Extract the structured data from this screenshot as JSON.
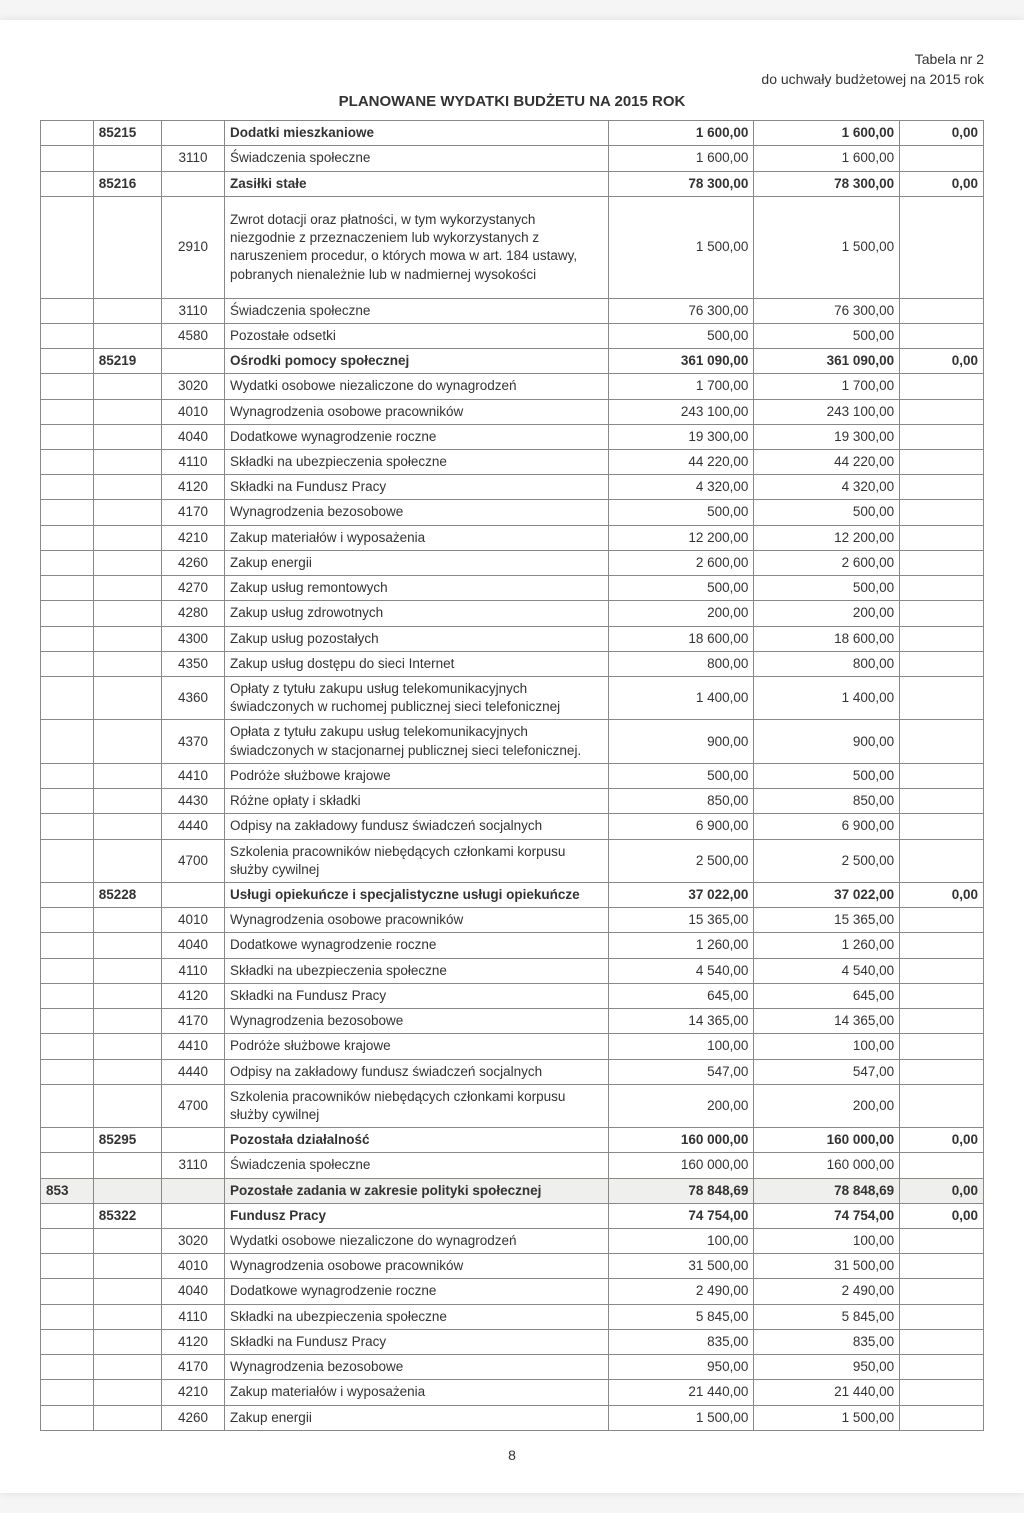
{
  "header": {
    "tableNo": "Tabela nr 2",
    "resolution": "do uchwały budżetowej na 2015 rok",
    "title": "PLANOWANE WYDATKI BUDŻETU NA 2015 ROK"
  },
  "pageNumber": "8",
  "rows": [
    {
      "a": "",
      "b": "85215",
      "c": "",
      "d": "Dodatki mieszkaniowe",
      "e": "1 600,00",
      "f": "1 600,00",
      "g": "0,00",
      "bold": true
    },
    {
      "a": "",
      "b": "",
      "c": "3110",
      "d": "Świadczenia społeczne",
      "e": "1 600,00",
      "f": "1 600,00",
      "g": ""
    },
    {
      "a": "",
      "b": "85216",
      "c": "",
      "d": "Zasiłki stałe",
      "e": "78 300,00",
      "f": "78 300,00",
      "g": "0,00",
      "bold": true
    },
    {
      "a": "",
      "b": "",
      "c": "2910",
      "d": "Zwrot dotacji oraz płatności, w tym wykorzystanych niezgodnie z przeznaczeniem lub wykorzystanych z naruszeniem procedur, o których mowa w art. 184 ustawy, pobranych nienależnie lub w nadmiernej wysokości",
      "e": "1 500,00",
      "f": "1 500,00",
      "g": "",
      "tall": true
    },
    {
      "a": "",
      "b": "",
      "c": "3110",
      "d": "Świadczenia społeczne",
      "e": "76 300,00",
      "f": "76 300,00",
      "g": ""
    },
    {
      "a": "",
      "b": "",
      "c": "4580",
      "d": "Pozostałe odsetki",
      "e": "500,00",
      "f": "500,00",
      "g": ""
    },
    {
      "a": "",
      "b": "85219",
      "c": "",
      "d": "Ośrodki pomocy społecznej",
      "e": "361 090,00",
      "f": "361 090,00",
      "g": "0,00",
      "bold": true
    },
    {
      "a": "",
      "b": "",
      "c": "3020",
      "d": "Wydatki osobowe niezaliczone do wynagrodzeń",
      "e": "1 700,00",
      "f": "1 700,00",
      "g": ""
    },
    {
      "a": "",
      "b": "",
      "c": "4010",
      "d": "Wynagrodzenia osobowe pracowników",
      "e": "243 100,00",
      "f": "243 100,00",
      "g": ""
    },
    {
      "a": "",
      "b": "",
      "c": "4040",
      "d": "Dodatkowe wynagrodzenie roczne",
      "e": "19 300,00",
      "f": "19 300,00",
      "g": ""
    },
    {
      "a": "",
      "b": "",
      "c": "4110",
      "d": "Składki na ubezpieczenia społeczne",
      "e": "44 220,00",
      "f": "44 220,00",
      "g": ""
    },
    {
      "a": "",
      "b": "",
      "c": "4120",
      "d": "Składki na Fundusz Pracy",
      "e": "4 320,00",
      "f": "4 320,00",
      "g": ""
    },
    {
      "a": "",
      "b": "",
      "c": "4170",
      "d": "Wynagrodzenia bezosobowe",
      "e": "500,00",
      "f": "500,00",
      "g": ""
    },
    {
      "a": "",
      "b": "",
      "c": "4210",
      "d": "Zakup materiałów i wyposażenia",
      "e": "12 200,00",
      "f": "12 200,00",
      "g": ""
    },
    {
      "a": "",
      "b": "",
      "c": "4260",
      "d": "Zakup energii",
      "e": "2 600,00",
      "f": "2 600,00",
      "g": ""
    },
    {
      "a": "",
      "b": "",
      "c": "4270",
      "d": "Zakup usług remontowych",
      "e": "500,00",
      "f": "500,00",
      "g": ""
    },
    {
      "a": "",
      "b": "",
      "c": "4280",
      "d": "Zakup usług zdrowotnych",
      "e": "200,00",
      "f": "200,00",
      "g": ""
    },
    {
      "a": "",
      "b": "",
      "c": "4300",
      "d": "Zakup usług pozostałych",
      "e": "18 600,00",
      "f": "18 600,00",
      "g": ""
    },
    {
      "a": "",
      "b": "",
      "c": "4350",
      "d": "Zakup usług dostępu do sieci Internet",
      "e": "800,00",
      "f": "800,00",
      "g": ""
    },
    {
      "a": "",
      "b": "",
      "c": "4360",
      "d": "Opłaty z tytułu zakupu usług telekomunikacyjnych świadczonych w ruchomej publicznej sieci telefonicznej",
      "e": "1 400,00",
      "f": "1 400,00",
      "g": ""
    },
    {
      "a": "",
      "b": "",
      "c": "4370",
      "d": "Opłata z tytułu zakupu usług telekomunikacyjnych świadczonych w stacjonarnej publicznej sieci telefonicznej.",
      "e": "900,00",
      "f": "900,00",
      "g": ""
    },
    {
      "a": "",
      "b": "",
      "c": "4410",
      "d": "Podróże służbowe krajowe",
      "e": "500,00",
      "f": "500,00",
      "g": ""
    },
    {
      "a": "",
      "b": "",
      "c": "4430",
      "d": "Różne opłaty i składki",
      "e": "850,00",
      "f": "850,00",
      "g": ""
    },
    {
      "a": "",
      "b": "",
      "c": "4440",
      "d": "Odpisy na zakładowy fundusz świadczeń socjalnych",
      "e": "6 900,00",
      "f": "6 900,00",
      "g": ""
    },
    {
      "a": "",
      "b": "",
      "c": "4700",
      "d": "Szkolenia pracowników niebędących członkami korpusu służby cywilnej",
      "e": "2 500,00",
      "f": "2 500,00",
      "g": ""
    },
    {
      "a": "",
      "b": "85228",
      "c": "",
      "d": "Usługi opiekuńcze i specjalistyczne usługi opiekuńcze",
      "e": "37 022,00",
      "f": "37 022,00",
      "g": "0,00",
      "bold": true
    },
    {
      "a": "",
      "b": "",
      "c": "4010",
      "d": "Wynagrodzenia osobowe pracowników",
      "e": "15 365,00",
      "f": "15 365,00",
      "g": ""
    },
    {
      "a": "",
      "b": "",
      "c": "4040",
      "d": "Dodatkowe wynagrodzenie roczne",
      "e": "1 260,00",
      "f": "1 260,00",
      "g": ""
    },
    {
      "a": "",
      "b": "",
      "c": "4110",
      "d": "Składki na ubezpieczenia społeczne",
      "e": "4 540,00",
      "f": "4 540,00",
      "g": ""
    },
    {
      "a": "",
      "b": "",
      "c": "4120",
      "d": "Składki na Fundusz Pracy",
      "e": "645,00",
      "f": "645,00",
      "g": ""
    },
    {
      "a": "",
      "b": "",
      "c": "4170",
      "d": "Wynagrodzenia bezosobowe",
      "e": "14 365,00",
      "f": "14 365,00",
      "g": ""
    },
    {
      "a": "",
      "b": "",
      "c": "4410",
      "d": "Podróże służbowe krajowe",
      "e": "100,00",
      "f": "100,00",
      "g": ""
    },
    {
      "a": "",
      "b": "",
      "c": "4440",
      "d": "Odpisy na zakładowy fundusz świadczeń socjalnych",
      "e": "547,00",
      "f": "547,00",
      "g": ""
    },
    {
      "a": "",
      "b": "",
      "c": "4700",
      "d": "Szkolenia pracowników niebędących członkami korpusu służby cywilnej",
      "e": "200,00",
      "f": "200,00",
      "g": ""
    },
    {
      "a": "",
      "b": "85295",
      "c": "",
      "d": "Pozostała działalność",
      "e": "160 000,00",
      "f": "160 000,00",
      "g": "0,00",
      "bold": true
    },
    {
      "a": "",
      "b": "",
      "c": "3110",
      "d": "Świadczenia społeczne",
      "e": "160 000,00",
      "f": "160 000,00",
      "g": ""
    },
    {
      "a": "853",
      "b": "",
      "c": "",
      "d": "Pozostałe zadania w zakresie polityki społecznej",
      "e": "78 848,69",
      "f": "78 848,69",
      "g": "0,00",
      "bold": true,
      "shade": true
    },
    {
      "a": "",
      "b": "85322",
      "c": "",
      "d": "Fundusz Pracy",
      "e": "74 754,00",
      "f": "74 754,00",
      "g": "0,00",
      "bold": true
    },
    {
      "a": "",
      "b": "",
      "c": "3020",
      "d": "Wydatki osobowe niezaliczone do wynagrodzeń",
      "e": "100,00",
      "f": "100,00",
      "g": ""
    },
    {
      "a": "",
      "b": "",
      "c": "4010",
      "d": "Wynagrodzenia osobowe pracowników",
      "e": "31 500,00",
      "f": "31 500,00",
      "g": ""
    },
    {
      "a": "",
      "b": "",
      "c": "4040",
      "d": "Dodatkowe wynagrodzenie roczne",
      "e": "2 490,00",
      "f": "2 490,00",
      "g": ""
    },
    {
      "a": "",
      "b": "",
      "c": "4110",
      "d": "Składki na ubezpieczenia społeczne",
      "e": "5 845,00",
      "f": "5 845,00",
      "g": ""
    },
    {
      "a": "",
      "b": "",
      "c": "4120",
      "d": "Składki na Fundusz Pracy",
      "e": "835,00",
      "f": "835,00",
      "g": ""
    },
    {
      "a": "",
      "b": "",
      "c": "4170",
      "d": "Wynagrodzenia bezosobowe",
      "e": "950,00",
      "f": "950,00",
      "g": ""
    },
    {
      "a": "",
      "b": "",
      "c": "4210",
      "d": "Zakup materiałów i wyposażenia",
      "e": "21 440,00",
      "f": "21 440,00",
      "g": ""
    },
    {
      "a": "",
      "b": "",
      "c": "4260",
      "d": "Zakup energii",
      "e": "1 500,00",
      "f": "1 500,00",
      "g": ""
    }
  ]
}
